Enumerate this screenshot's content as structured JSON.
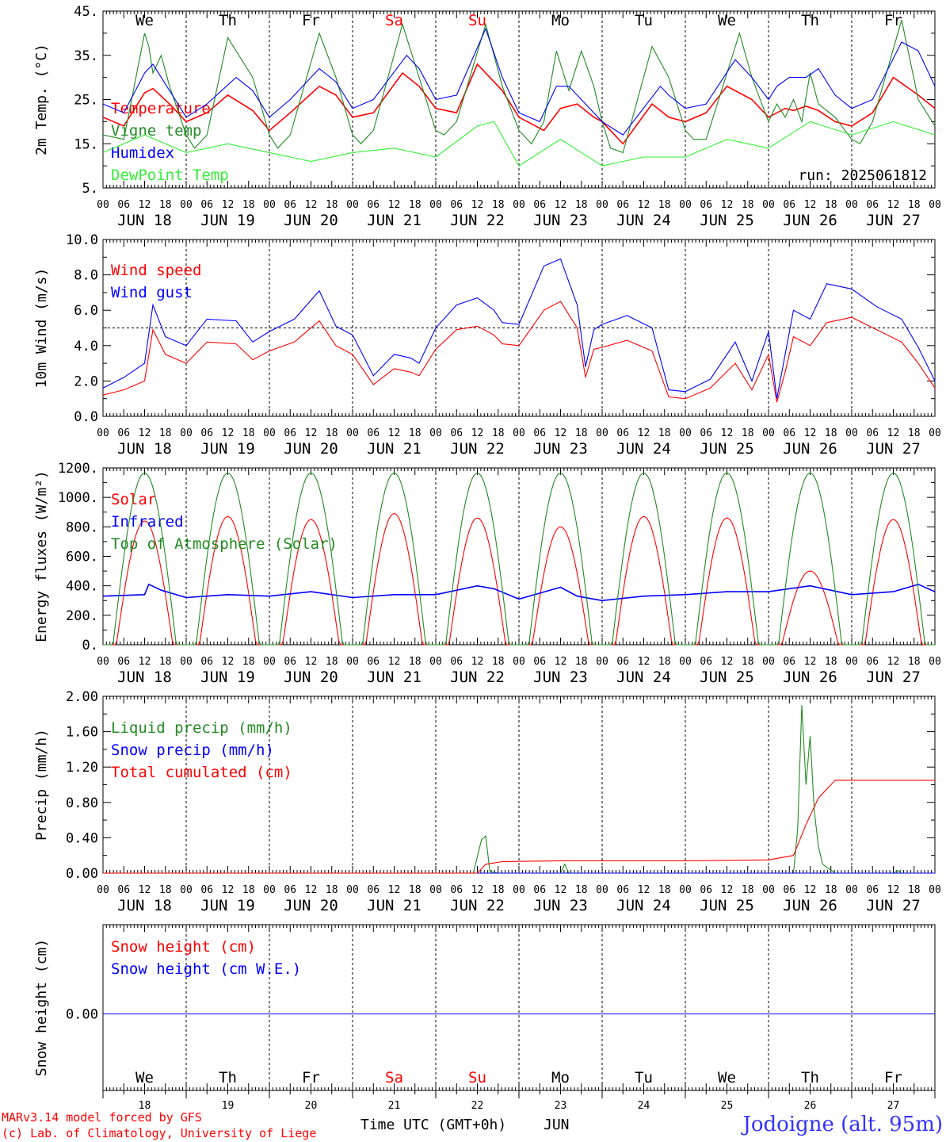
{
  "colors": {
    "red": "#ff0000",
    "dark_green": "#228b22",
    "blue": "#0000ff",
    "light_green": "#33ee33",
    "weekend": "#ff0000",
    "station": "#3333ff"
  },
  "days": {
    "weekdays": [
      "We",
      "Th",
      "Fr",
      "Sa",
      "Su",
      "Mo",
      "Tu",
      "We",
      "Th",
      "Fr"
    ],
    "weekend_flags": [
      false,
      false,
      false,
      true,
      true,
      false,
      false,
      false,
      false,
      false
    ],
    "dates": [
      "JUN 18",
      "JUN 19",
      "JUN 20",
      "JUN 21",
      "JUN 22",
      "JUN 23",
      "JUN 24",
      "JUN 25",
      "JUN 26",
      "JUN 27"
    ],
    "day_numbers": [
      "18",
      "19",
      "20",
      "21",
      "22",
      "23",
      "24",
      "25",
      "26",
      "27"
    ],
    "hour_labels": [
      "00",
      "06",
      "12",
      "18"
    ],
    "final_hour": "00"
  },
  "footer": {
    "model": "MARv3.14 model forced by GFS",
    "copyright": "(c) Lab. of Climatology, University of Liege",
    "time_axis": "Time UTC (GMT+0h)",
    "month": "JUN",
    "station": "Jodoigne (alt. 95m)"
  },
  "chart_data": [
    {
      "type": "line",
      "id": "temp",
      "ylabel": "2m Temp. (°C)",
      "ylim": [
        5,
        45
      ],
      "yticks": [
        "5.",
        "15.",
        "25.",
        "35.",
        "45."
      ],
      "x_units": "days since JUN 18 00 UTC",
      "xlim": [
        0,
        10
      ],
      "annotation": "run: 2025061812",
      "series": [
        {
          "name": "Temperature",
          "color": "red",
          "x": [
            0,
            0.25,
            0.5,
            0.6,
            0.8,
            1.0,
            1.25,
            1.5,
            1.8,
            2.0,
            2.25,
            2.6,
            2.8,
            3.0,
            3.25,
            3.6,
            3.8,
            4.0,
            4.25,
            4.5,
            4.8,
            5.0,
            5.3,
            5.5,
            5.7,
            5.9,
            6.0,
            6.25,
            6.6,
            6.8,
            7.0,
            7.25,
            7.5,
            7.8,
            8.0,
            8.2,
            8.3,
            8.45,
            8.6,
            8.8,
            9.0,
            9.25,
            9.5,
            9.8,
            10.0
          ],
          "y": [
            21,
            19,
            26.5,
            27.5,
            24,
            20,
            22,
            26,
            22.5,
            18,
            22,
            28,
            26,
            21,
            22,
            31,
            28,
            23,
            22,
            33,
            27,
            21,
            18,
            23,
            24,
            21,
            20,
            15,
            24,
            21,
            20,
            22,
            28,
            25,
            21,
            23,
            22.5,
            23.5,
            22.5,
            20,
            19,
            22,
            30,
            26,
            23
          ]
        },
        {
          "name": "Vigne temp",
          "color": "dark_green",
          "x": [
            0,
            0.25,
            0.5,
            0.55,
            0.6,
            0.7,
            0.8,
            1.0,
            1.1,
            1.25,
            1.5,
            1.8,
            2.0,
            2.1,
            2.25,
            2.6,
            2.8,
            3.0,
            3.1,
            3.25,
            3.6,
            3.8,
            4.0,
            4.1,
            4.25,
            4.6,
            4.8,
            5.0,
            5.15,
            5.3,
            5.45,
            5.6,
            5.75,
            5.9,
            6.0,
            6.1,
            6.25,
            6.6,
            6.8,
            7.0,
            7.1,
            7.25,
            7.65,
            7.8,
            8.0,
            8.1,
            8.2,
            8.3,
            8.4,
            8.5,
            8.6,
            8.8,
            9.0,
            9.1,
            9.25,
            9.6,
            9.8,
            10.0
          ],
          "y": [
            17,
            16,
            40,
            37,
            31,
            35,
            28,
            17,
            14,
            17,
            39,
            30,
            17,
            14,
            17,
            40,
            30,
            17,
            15,
            18,
            42,
            30,
            18,
            17,
            20,
            42,
            28,
            18,
            15,
            20,
            36,
            27,
            36,
            28,
            20,
            14,
            13,
            37,
            30,
            18,
            16,
            16,
            40,
            30,
            20,
            24,
            21,
            25,
            20,
            31,
            24,
            21,
            16,
            15,
            20,
            43,
            25,
            19
          ]
        },
        {
          "name": "Humidex",
          "color": "blue",
          "x": [
            0,
            0.25,
            0.5,
            0.6,
            0.8,
            1.0,
            1.25,
            1.6,
            1.8,
            2.0,
            2.25,
            2.6,
            2.8,
            3.0,
            3.25,
            3.65,
            3.8,
            4.0,
            4.25,
            4.6,
            4.8,
            5.0,
            5.25,
            5.45,
            5.6,
            5.8,
            6.0,
            6.25,
            6.7,
            6.8,
            7.0,
            7.25,
            7.6,
            7.8,
            8.0,
            8.1,
            8.25,
            8.45,
            8.6,
            8.8,
            9.0,
            9.25,
            9.6,
            9.8,
            10.0
          ],
          "y": [
            24,
            22,
            31,
            33,
            27,
            21,
            24,
            30,
            27,
            21,
            25,
            32,
            29,
            23,
            25,
            35,
            32,
            25,
            26,
            41,
            30,
            22,
            20,
            28,
            28,
            24,
            20,
            17,
            28,
            26,
            23,
            24,
            34,
            30,
            25,
            28,
            30,
            30,
            32,
            26,
            23,
            25,
            38,
            36,
            28
          ]
        },
        {
          "name": "DewPoint Temp",
          "color": "light_green",
          "x": [
            0,
            0.5,
            1.0,
            1.5,
            2.0,
            2.5,
            3.0,
            3.5,
            4.0,
            4.5,
            4.7,
            5.0,
            5.5,
            6.0,
            6.5,
            7.0,
            7.5,
            8.0,
            8.5,
            9.0,
            9.5,
            10.0
          ],
          "y": [
            13,
            17,
            13,
            15,
            13,
            11,
            13,
            14,
            12,
            19,
            20,
            10,
            16,
            10,
            12,
            12,
            16,
            14,
            20,
            17,
            20,
            17
          ]
        }
      ]
    },
    {
      "type": "line",
      "id": "wind",
      "ylabel": "10m Wind (m/s)",
      "ylim": [
        0,
        10
      ],
      "yticks": [
        "0.0",
        "2.0",
        "4.0",
        "6.0",
        "8.0",
        "10.0"
      ],
      "x_units": "days since JUN 18 00 UTC",
      "xlim": [
        0,
        10
      ],
      "reference_line": 5,
      "series": [
        {
          "name": "Wind speed",
          "color": "red",
          "x": [
            0,
            0.25,
            0.5,
            0.6,
            0.75,
            1.0,
            1.25,
            1.6,
            1.8,
            2.0,
            2.3,
            2.6,
            2.8,
            3.0,
            3.25,
            3.5,
            3.7,
            3.8,
            4.0,
            4.25,
            4.5,
            4.7,
            4.8,
            5.0,
            5.3,
            5.5,
            5.7,
            5.8,
            5.9,
            6.0,
            6.3,
            6.6,
            6.8,
            7.0,
            7.3,
            7.6,
            7.8,
            8.0,
            8.1,
            8.2,
            8.3,
            8.5,
            8.7,
            9.0,
            9.3,
            9.6,
            9.8,
            10.0
          ],
          "y": [
            1.2,
            1.5,
            2.0,
            4.9,
            3.5,
            3.0,
            4.2,
            4.1,
            3.2,
            3.7,
            4.2,
            5.4,
            4.0,
            3.5,
            1.8,
            2.7,
            2.5,
            2.3,
            3.8,
            4.9,
            5.1,
            4.6,
            4.1,
            4.0,
            6.0,
            6.5,
            5.0,
            2.2,
            3.8,
            3.9,
            4.3,
            3.7,
            1.1,
            1.0,
            1.6,
            3.0,
            1.5,
            3.5,
            0.8,
            2.5,
            4.5,
            4.0,
            5.3,
            5.6,
            4.9,
            4.2,
            3.0,
            1.6
          ]
        },
        {
          "name": "Wind gust",
          "color": "blue",
          "x": [
            0,
            0.25,
            0.5,
            0.6,
            0.75,
            1.0,
            1.25,
            1.6,
            1.8,
            2.0,
            2.3,
            2.6,
            2.8,
            3.0,
            3.25,
            3.5,
            3.7,
            3.8,
            4.0,
            4.25,
            4.5,
            4.7,
            4.8,
            5.0,
            5.3,
            5.5,
            5.7,
            5.8,
            5.9,
            6.0,
            6.3,
            6.6,
            6.8,
            7.0,
            7.3,
            7.6,
            7.8,
            8.0,
            8.1,
            8.2,
            8.3,
            8.5,
            8.7,
            9.0,
            9.3,
            9.6,
            9.8,
            10.0
          ],
          "y": [
            1.6,
            2.2,
            3.0,
            6.3,
            4.5,
            4.0,
            5.5,
            5.4,
            4.2,
            4.8,
            5.5,
            7.1,
            5.1,
            4.6,
            2.3,
            3.5,
            3.3,
            3.0,
            5.0,
            6.3,
            6.7,
            6.0,
            5.3,
            5.2,
            8.5,
            8.9,
            6.3,
            2.8,
            4.9,
            5.2,
            5.7,
            5.0,
            1.5,
            1.4,
            2.1,
            4.2,
            2.0,
            4.8,
            1.0,
            3.5,
            6.0,
            5.5,
            7.5,
            7.2,
            6.2,
            5.5,
            3.9,
            2.0
          ]
        }
      ]
    },
    {
      "type": "line",
      "id": "energy",
      "ylabel": "Energy fluxes (W/m²)",
      "ylim": [
        0,
        1200
      ],
      "yticks": [
        "0.",
        "200.",
        "400.",
        "600.",
        "800.",
        "1000.",
        "1200."
      ],
      "x_units": "days since JUN 18 00 UTC",
      "xlim": [
        0,
        10
      ],
      "series": [
        {
          "name": "Solar",
          "color": "red",
          "peak_values": [
            840,
            870,
            850,
            890,
            860,
            800,
            870,
            860,
            500,
            850
          ],
          "daylight_fraction": [
            0.16,
            0.84
          ]
        },
        {
          "name": "Infrared",
          "color": "blue",
          "x": [
            0,
            0.5,
            0.55,
            0.7,
            1.0,
            1.5,
            2.0,
            2.5,
            3.0,
            3.5,
            4.0,
            4.5,
            4.7,
            5.0,
            5.5,
            5.7,
            6.0,
            6.5,
            7.0,
            7.5,
            8.0,
            8.5,
            9.0,
            9.5,
            9.8,
            10.0
          ],
          "y": [
            330,
            340,
            410,
            370,
            320,
            340,
            330,
            360,
            320,
            340,
            340,
            400,
            380,
            310,
            390,
            330,
            300,
            330,
            340,
            360,
            360,
            400,
            340,
            360,
            410,
            360
          ]
        },
        {
          "name": "Top of Atmosphere (Solar)",
          "color": "dark_green",
          "peak_values": [
            1165,
            1165,
            1165,
            1165,
            1165,
            1165,
            1165,
            1165,
            1165,
            1165
          ],
          "daylight_fraction": [
            0.12,
            0.88
          ]
        }
      ]
    },
    {
      "type": "line",
      "id": "precip",
      "ylabel": "Precip (mm/h)",
      "ylim": [
        0,
        2
      ],
      "yticks": [
        "0.00",
        "0.40",
        "0.80",
        "1.20",
        "1.60",
        "2.00"
      ],
      "x_units": "days since JUN 18 00 UTC",
      "xlim": [
        0,
        10
      ],
      "series": [
        {
          "name": "Liquid precip (mm/h)",
          "color": "dark_green",
          "x": [
            0,
            4.45,
            4.55,
            4.6,
            4.65,
            4.75,
            5.5,
            5.55,
            5.6,
            8.3,
            8.35,
            8.4,
            8.45,
            8.5,
            8.55,
            8.6,
            8.65,
            8.8,
            8.9,
            9.5,
            9.55,
            9.6,
            10.0
          ],
          "y": [
            0,
            0,
            0.38,
            0.42,
            0.02,
            0,
            0,
            0.1,
            0,
            0,
            0.5,
            1.9,
            1.0,
            1.55,
            0.7,
            0.3,
            0.1,
            0,
            0,
            0,
            0.03,
            0,
            0
          ]
        },
        {
          "name": "Snow precip (mm/h)",
          "color": "blue",
          "x": [
            0,
            10.0
          ],
          "y": [
            0,
            0
          ]
        },
        {
          "name": "Total cumulated (cm)",
          "color": "red",
          "x": [
            0,
            4.5,
            4.6,
            4.8,
            5.5,
            6.0,
            7.0,
            8.0,
            8.3,
            8.45,
            8.6,
            8.8,
            9.0,
            10.0
          ],
          "y": [
            0,
            0,
            0.1,
            0.13,
            0.14,
            0.14,
            0.14,
            0.15,
            0.2,
            0.55,
            0.85,
            1.05,
            1.05,
            1.05
          ]
        }
      ]
    },
    {
      "type": "line",
      "id": "snow",
      "ylabel": "Snow height (cm)",
      "yticks": [
        "0.00"
      ],
      "x_units": "days since JUN 18 00 UTC",
      "xlim": [
        0,
        10
      ],
      "series": [
        {
          "name": "Snow height (cm)",
          "color": "red",
          "x": [
            0,
            10
          ],
          "y": [
            0,
            0
          ]
        },
        {
          "name": "Snow height (cm W.E.)",
          "color": "blue",
          "x": [
            0,
            10
          ],
          "y": [
            0,
            0
          ]
        }
      ]
    }
  ]
}
